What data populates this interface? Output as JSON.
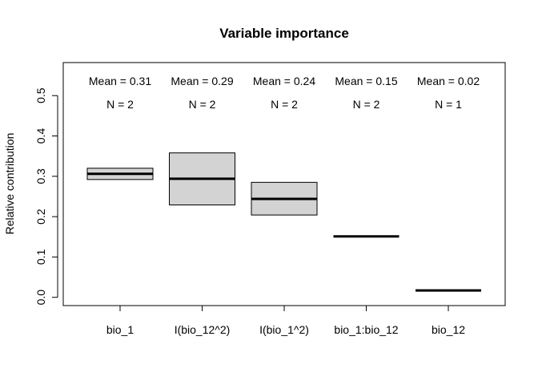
{
  "chart_data": {
    "type": "boxplot",
    "title": "Variable importance",
    "xlabel": "",
    "ylabel": "Relative contribution",
    "ylim": [
      -0.02,
      0.58
    ],
    "yticks": [
      "0.0",
      "0.1",
      "0.2",
      "0.3",
      "0.4",
      "0.5"
    ],
    "grid": false,
    "box_fill": "#d3d3d3",
    "categories": [
      "bio_1",
      "I(bio_12^2)",
      "I(bio_1^2)",
      "bio_1:bio_12",
      "bio_12"
    ],
    "boxes": [
      {
        "q1": 0.292,
        "median": 0.306,
        "q3": 0.32
      },
      {
        "q1": 0.229,
        "median": 0.294,
        "q3": 0.358
      },
      {
        "q1": 0.204,
        "median": 0.244,
        "q3": 0.285
      },
      {
        "q1": 0.151,
        "median": 0.151,
        "q3": 0.151
      },
      {
        "q1": 0.017,
        "median": 0.017,
        "q3": 0.017
      }
    ],
    "mean_labels": [
      "Mean = 0.31",
      "Mean = 0.29",
      "Mean = 0.24",
      "Mean = 0.15",
      "Mean = 0.02"
    ],
    "n_labels": [
      "N = 2",
      "N = 2",
      "N = 2",
      "N = 2",
      "N = 1"
    ]
  }
}
